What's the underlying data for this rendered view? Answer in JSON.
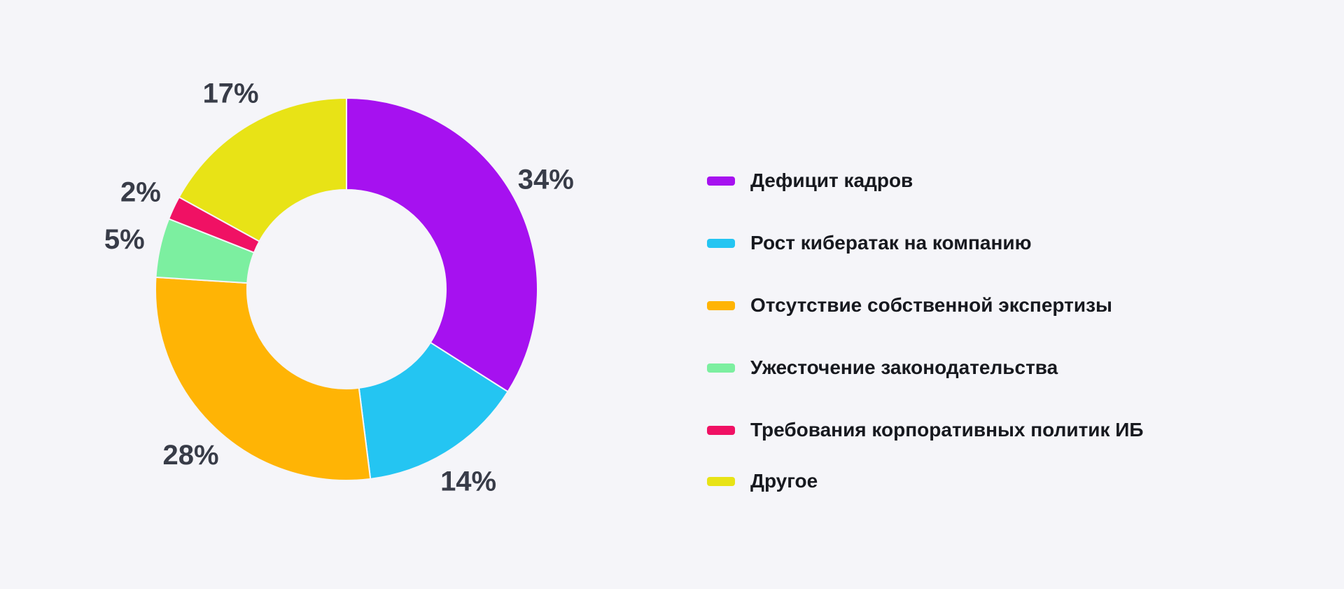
{
  "background_color": "#F5F5F9",
  "chart_data": {
    "type": "pie",
    "variant": "donut",
    "title": "",
    "legend_position": "right",
    "start_angle_deg": 0,
    "direction": "clockwise",
    "inner_radius_ratio": 0.52,
    "value_label_color": "#383C48",
    "legend_text_color": "#17191F",
    "slices": [
      {
        "label": "Дефицит кадров",
        "value": 34,
        "percent_label": "34%",
        "color": "#A611F0"
      },
      {
        "label": "Рост кибератак на компанию",
        "value": 14,
        "percent_label": "14%",
        "color": "#24C5F2"
      },
      {
        "label": "Отсутствие собственной экспертизы",
        "value": 28,
        "percent_label": "28%",
        "color": "#FFB405"
      },
      {
        "label": "Ужесточение законодательства",
        "value": 5,
        "percent_label": "5%",
        "color": "#7CEFA0"
      },
      {
        "label": "Требования корпоративных политик ИБ",
        "value": 2,
        "percent_label": "2%",
        "color": "#F01164"
      },
      {
        "label": "Другое",
        "value": 17,
        "percent_label": "17%",
        "color": "#E8E316"
      }
    ]
  }
}
